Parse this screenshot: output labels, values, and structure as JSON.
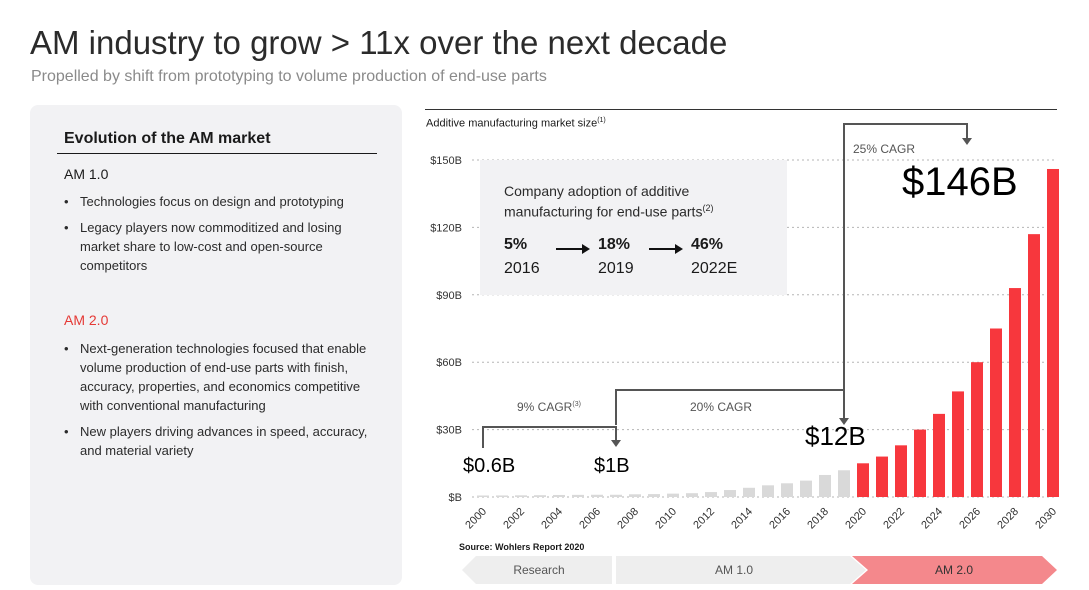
{
  "header": {
    "title": "AM industry to grow > 11x over the next decade",
    "subtitle": "Propelled by shift from prototyping to volume production of end-use parts"
  },
  "panel": {
    "title": "Evolution of the AM market",
    "sections": [
      {
        "heading": "AM 1.0",
        "bullets": [
          "Technologies focus on design and prototyping",
          "Legacy players now commoditized and losing market share to low-cost and open-source competitors"
        ]
      },
      {
        "heading": "AM 2.0",
        "bullets": [
          "Next-generation technologies focused that enable volume production of end-use parts with finish, accuracy, properties, and economics competitive with conventional manufacturing",
          "New players driving advances in speed, accuracy, and material variety"
        ]
      }
    ]
  },
  "inset": {
    "title_line1": "Company adoption of additive",
    "title_line2": "manufacturing for end-use parts",
    "title_sup": "(2)",
    "items": [
      {
        "pct": "5%",
        "year": "2016"
      },
      {
        "pct": "18%",
        "year": "2019"
      },
      {
        "pct": "46%",
        "year": "2022E"
      }
    ]
  },
  "annotations": {
    "v2000": "$0.6B",
    "v2007": "$1B",
    "v2019": "$12B",
    "v2030": "$146B",
    "cagr1": "9% CAGR",
    "cagr1_sup": "(3)",
    "cagr2": "20% CAGR",
    "cagr3": "25% CAGR"
  },
  "chart_data": {
    "type": "bar",
    "title": "Additive manufacturing market size",
    "title_sup": "(1)",
    "source": "Source: Wohlers Report 2020",
    "x": [
      2000,
      2001,
      2002,
      2003,
      2004,
      2005,
      2006,
      2007,
      2008,
      2009,
      2010,
      2011,
      2012,
      2013,
      2014,
      2015,
      2016,
      2017,
      2018,
      2019,
      2020,
      2021,
      2022,
      2023,
      2024,
      2025,
      2026,
      2027,
      2028,
      2029,
      2030
    ],
    "values": [
      0.6,
      0.7,
      0.75,
      0.8,
      0.9,
      0.95,
      1.0,
      1.0,
      1.2,
      1.3,
      1.5,
      1.7,
      2.2,
      3.1,
      4.1,
      5.2,
      6.1,
      7.3,
      9.8,
      11.9,
      15,
      18,
      23,
      30,
      37,
      47,
      60,
      75,
      93,
      117,
      146
    ],
    "series_status": [
      "historical",
      "historical",
      "historical",
      "historical",
      "historical",
      "historical",
      "historical",
      "historical",
      "historical",
      "historical",
      "historical",
      "historical",
      "historical",
      "historical",
      "historical",
      "historical",
      "historical",
      "historical",
      "historical",
      "historical",
      "forecast",
      "forecast",
      "forecast",
      "forecast",
      "forecast",
      "forecast",
      "forecast",
      "forecast",
      "forecast",
      "forecast",
      "forecast"
    ],
    "colors": {
      "historical": "#d9d9d9",
      "forecast": "#f7373d"
    },
    "y_ticks": [
      0,
      30,
      60,
      90,
      120,
      150
    ],
    "y_tick_labels": [
      "$B",
      "$30B",
      "$60B",
      "$90B",
      "$120B",
      "$150B"
    ],
    "x_tick_labels": [
      "2000",
      "2002",
      "2004",
      "2006",
      "2008",
      "2010",
      "2012",
      "2014",
      "2016",
      "2018",
      "2020",
      "2022",
      "2024",
      "2026",
      "2028",
      "2030"
    ],
    "ylim": [
      0,
      150
    ],
    "grid": "dotted horizontal",
    "phases": [
      "Research",
      "AM 1.0",
      "AM 2.0"
    ],
    "phase_colors": {
      "Research": "#eeeeee",
      "AM 1.0": "#eeeeee",
      "AM 2.0": "#f4888c"
    }
  }
}
